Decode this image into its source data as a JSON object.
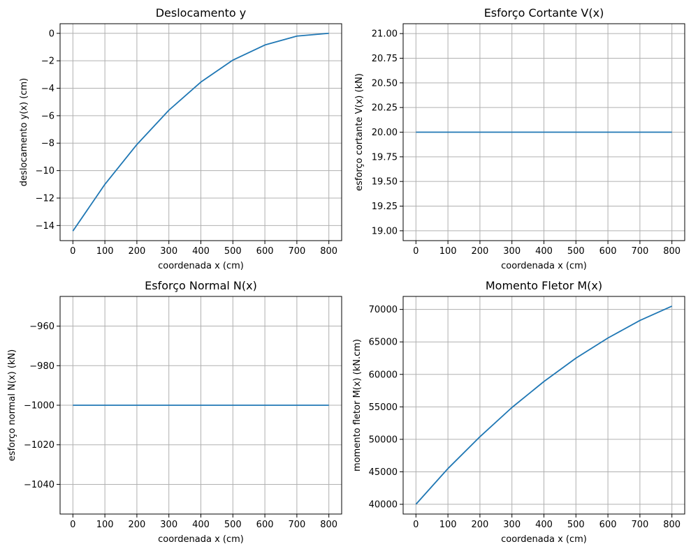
{
  "colors": {
    "series": "#1f77b4",
    "grid": "#b0b0b0",
    "frame": "#000000"
  },
  "chart_data": [
    {
      "id": "deslocamento",
      "type": "line",
      "title": "Deslocamento y",
      "xlabel": "coordenada x (cm)",
      "ylabel": "deslocamento y(x) (cm)",
      "xlim": [
        -40,
        840
      ],
      "ylim": [
        -15.1,
        0.7
      ],
      "grid": true,
      "xticks": [
        0,
        100,
        200,
        300,
        400,
        500,
        600,
        700,
        800
      ],
      "xticklabels": [
        "0",
        "100",
        "200",
        "300",
        "400",
        "500",
        "600",
        "700",
        "800"
      ],
      "yticks": [
        -14,
        -12,
        -10,
        -8,
        -6,
        -4,
        -2,
        0
      ],
      "yticklabels": [
        "−14",
        "−12",
        "−10",
        "−8",
        "−6",
        "−4",
        "−2",
        "0"
      ],
      "series": [
        {
          "x": [
            0,
            100,
            200,
            300,
            400,
            500,
            600,
            700,
            800
          ],
          "y": [
            -14.4,
            -11.0,
            -8.1,
            -5.6,
            -3.55,
            -1.95,
            -0.85,
            -0.2,
            0.0
          ]
        }
      ]
    },
    {
      "id": "cortante",
      "type": "line",
      "title": "Esforço Cortante V(x)",
      "xlabel": "coordenada x (cm)",
      "ylabel": "esforço cortante V(x) (kN)",
      "xlim": [
        -40,
        840
      ],
      "ylim": [
        18.9,
        21.1
      ],
      "grid": true,
      "xticks": [
        0,
        100,
        200,
        300,
        400,
        500,
        600,
        700,
        800
      ],
      "xticklabels": [
        "0",
        "100",
        "200",
        "300",
        "400",
        "500",
        "600",
        "700",
        "800"
      ],
      "yticks": [
        19.0,
        19.25,
        19.5,
        19.75,
        20.0,
        20.25,
        20.5,
        20.75,
        21.0
      ],
      "yticklabels": [
        "19.00",
        "19.25",
        "19.50",
        "19.75",
        "20.00",
        "20.25",
        "20.50",
        "20.75",
        "21.00"
      ],
      "series": [
        {
          "x": [
            0,
            100,
            200,
            300,
            400,
            500,
            600,
            700,
            800
          ],
          "y": [
            20,
            20,
            20,
            20,
            20,
            20,
            20,
            20,
            20
          ]
        }
      ]
    },
    {
      "id": "normal",
      "type": "line",
      "title": "Esforço Normal N(x)",
      "xlabel": "coordenada x (cm)",
      "ylabel": "esforço normal N(x) (kN)",
      "xlim": [
        -40,
        840
      ],
      "ylim": [
        -1055,
        -945
      ],
      "grid": true,
      "xticks": [
        0,
        100,
        200,
        300,
        400,
        500,
        600,
        700,
        800
      ],
      "xticklabels": [
        "0",
        "100",
        "200",
        "300",
        "400",
        "500",
        "600",
        "700",
        "800"
      ],
      "yticks": [
        -1040,
        -1020,
        -1000,
        -980,
        -960
      ],
      "yticklabels": [
        "−1040",
        "−1020",
        "−1000",
        "−980",
        "−960"
      ],
      "series": [
        {
          "x": [
            0,
            100,
            200,
            300,
            400,
            500,
            600,
            700,
            800
          ],
          "y": [
            -1000,
            -1000,
            -1000,
            -1000,
            -1000,
            -1000,
            -1000,
            -1000,
            -1000
          ]
        }
      ]
    },
    {
      "id": "momento",
      "type": "line",
      "title": "Momento Fletor M(x)",
      "xlabel": "coordenada x (cm)",
      "ylabel": "momento fletor M(x) (kN.cm)",
      "xlim": [
        -40,
        840
      ],
      "ylim": [
        38500,
        72000
      ],
      "grid": true,
      "xticks": [
        0,
        100,
        200,
        300,
        400,
        500,
        600,
        700,
        800
      ],
      "xticklabels": [
        "0",
        "100",
        "200",
        "300",
        "400",
        "500",
        "600",
        "700",
        "800"
      ],
      "yticks": [
        40000,
        45000,
        50000,
        55000,
        60000,
        65000,
        70000
      ],
      "yticklabels": [
        "40000",
        "45000",
        "50000",
        "55000",
        "60000",
        "65000",
        "70000"
      ],
      "series": [
        {
          "x": [
            0,
            100,
            200,
            300,
            400,
            500,
            600,
            700,
            800
          ],
          "y": [
            40000,
            45500,
            50400,
            54900,
            58900,
            62500,
            65600,
            68300,
            70500
          ]
        }
      ]
    }
  ]
}
